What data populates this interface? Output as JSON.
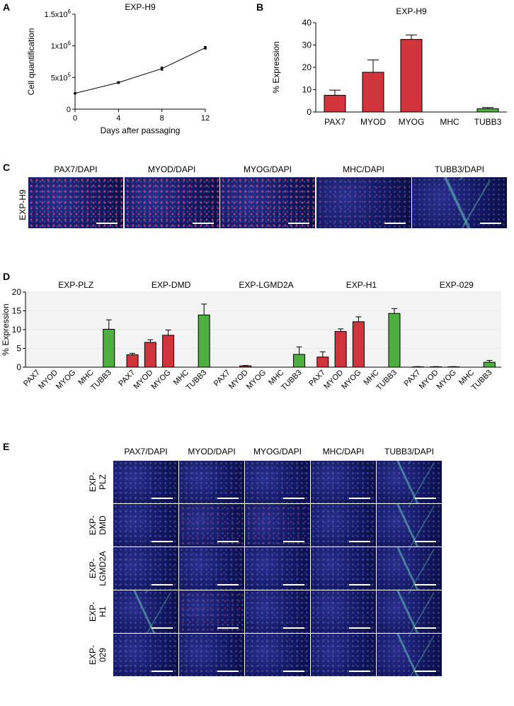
{
  "panels": {
    "A": {
      "letter": "A"
    },
    "B": {
      "letter": "B"
    },
    "C": {
      "letter": "C",
      "row_label": "EXP-H9",
      "headers": [
        "PAX7/DAPI",
        "MYOD/DAPI",
        "MYOG/DAPI",
        "MHC/DAPI",
        "TUBB3/DAPI"
      ]
    },
    "D": {
      "letter": "D"
    },
    "E": {
      "letter": "E",
      "headers": [
        "PAX7/DAPI",
        "MYOD/DAPI",
        "MYOG/DAPI",
        "MHC/DAPI",
        "TUBB3/DAPI"
      ],
      "row_labels": [
        [
          "EXP-",
          "PLZ"
        ],
        [
          "EXP-",
          "DMD"
        ],
        [
          "EXP-",
          "LGMD2A"
        ],
        [
          "EXP-",
          "H1"
        ],
        [
          "EXP-",
          "029"
        ]
      ]
    }
  },
  "chart_data": [
    {
      "id": "A",
      "type": "line",
      "title": "EXP-H9",
      "xlabel": "Days after passaging",
      "ylabel": "Cell quantification",
      "x": [
        0,
        4,
        8,
        12
      ],
      "y": [
        250000,
        420000,
        640000,
        970000
      ],
      "err": [
        8000,
        15000,
        25000,
        20000
      ],
      "xlim": [
        0,
        12
      ],
      "ylim": [
        0,
        1500000
      ],
      "xticks": [
        "0",
        "4",
        "8",
        "12"
      ],
      "yticks": [
        {
          "v": 0,
          "base": "0",
          "exp": ""
        },
        {
          "v": 500000,
          "base": "5x10",
          "exp": "5"
        },
        {
          "v": 1000000,
          "base": "1x10",
          "exp": "6"
        },
        {
          "v": 1500000,
          "base": "1.5x10",
          "exp": "6"
        }
      ]
    },
    {
      "id": "B",
      "type": "bar",
      "title": "EXP-H9",
      "ylabel": "% Expression",
      "categories": [
        "PAX7",
        "MYOD",
        "MYOG",
        "MHC",
        "TUBB3"
      ],
      "values": [
        7.5,
        17.8,
        32.5,
        0,
        1.5
      ],
      "err": [
        2.3,
        5.5,
        2.0,
        0,
        0.5
      ],
      "colors": [
        "#d1353b",
        "#d1353b",
        "#d1353b",
        "#d1353b",
        "#4caf3f"
      ],
      "ylim": [
        0,
        40
      ],
      "yticks": [
        "0",
        "10",
        "20",
        "30",
        "40"
      ]
    },
    {
      "id": "D",
      "type": "bar",
      "ylabel": "% Expression",
      "ylim": [
        0,
        20
      ],
      "yticks": [
        "0",
        "5",
        "10",
        "15",
        "20"
      ],
      "categories": [
        "PAX7",
        "MYOD",
        "MYOG",
        "MHC",
        "TUBB3"
      ],
      "colors": [
        "#d1353b",
        "#d1353b",
        "#d1353b",
        "#d1353b",
        "#4caf3f"
      ],
      "groups": [
        {
          "name": "EXP-PLZ",
          "values": [
            0,
            0,
            0,
            0,
            10.1
          ],
          "err": [
            0,
            0,
            0,
            0,
            2.5
          ]
        },
        {
          "name": "EXP-DMD",
          "values": [
            3.3,
            6.6,
            8.5,
            0,
            13.9
          ],
          "err": [
            0.4,
            0.7,
            1.4,
            0,
            2.9
          ]
        },
        {
          "name": "EXP-LGMD2A",
          "values": [
            0,
            0.35,
            0,
            0,
            3.4
          ],
          "err": [
            0,
            0.1,
            0,
            0,
            2.0
          ]
        },
        {
          "name": "EXP-H1",
          "values": [
            2.7,
            9.5,
            12.1,
            0,
            14.3
          ],
          "err": [
            1.4,
            0.7,
            1.3,
            0,
            1.3
          ]
        },
        {
          "name": "EXP-029",
          "values": [
            0.1,
            0.1,
            0.1,
            0,
            1.3
          ],
          "err": [
            0.05,
            0.05,
            0.05,
            0,
            0.5
          ]
        }
      ]
    }
  ]
}
